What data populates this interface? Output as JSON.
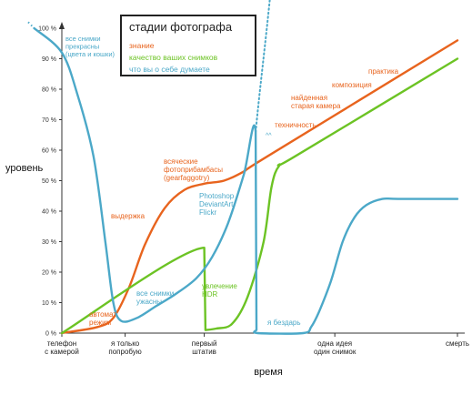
{
  "chart_data": {
    "type": "line",
    "title": "стадии фотографа",
    "ylabel": "уровень",
    "xlabel": "время",
    "ylim": [
      0,
      100
    ],
    "y_ticks": [
      "0 %",
      "10 %",
      "20 %",
      "30 %",
      "40 %",
      "50 %",
      "60 %",
      "70 %",
      "80 %",
      "90 %",
      "100 %"
    ],
    "x_ticks": [
      {
        "x": 0,
        "label": "телефон\nс камерой"
      },
      {
        "x": 0.16,
        "label": "я только\nпопробую"
      },
      {
        "x": 0.36,
        "label": "первый\nштатив"
      },
      {
        "x": 0.69,
        "label": "одна идея\nодин снимок"
      },
      {
        "x": 1.0,
        "label": "смерть"
      }
    ],
    "series": [
      {
        "name": "знание",
        "color": "#E8641E",
        "x": [
          0,
          0.09,
          0.13,
          0.17,
          0.21,
          0.26,
          0.31,
          0.36,
          0.41,
          0.46,
          0.52,
          1.0
        ],
        "y": [
          0,
          2,
          5,
          15,
          29,
          41,
          47,
          49,
          50,
          53,
          58,
          96
        ]
      },
      {
        "name": "качество ваших снимков",
        "color": "#6CC324",
        "x": [
          0,
          0.36,
          0.363,
          0.39,
          0.43,
          0.47,
          0.51,
          0.53,
          0.55,
          0.59,
          1.0
        ],
        "y": [
          0,
          28,
          1,
          1.5,
          3,
          12,
          30,
          48,
          55,
          58,
          90
        ]
      },
      {
        "name": "что вы о себе думаете",
        "color": "#4BA8C8",
        "x": [
          -0.07,
          0,
          0.04,
          0.08,
          0.11,
          0.13,
          0.15,
          0.19,
          0.24,
          0.29,
          0.34,
          0.38,
          0.42,
          0.46,
          0.49,
          0.492,
          0.495,
          0.61,
          0.63,
          0.65,
          0.68,
          0.71,
          0.74,
          0.77,
          0.81,
          0.85,
          1.0
        ],
        "y": [
          100,
          92,
          78,
          58,
          30,
          10,
          4,
          5,
          9,
          13,
          18,
          25,
          36,
          52,
          66,
          1,
          0,
          0,
          2,
          7,
          17,
          30,
          38,
          42,
          44,
          44,
          44
        ]
      }
    ],
    "annotations": [
      {
        "text": "все снимки\nпрекрасны\n(цвета и кошки)",
        "color": "#4BA8C8"
      },
      {
        "text": "выдержка",
        "color": "#E8641E"
      },
      {
        "text": "всяческие\nфотоприбамбасы\n(gearfaggotry)",
        "color": "#E8641E"
      },
      {
        "text": "Photoshop\nDeviantArt\nFlickr",
        "color": "#4BA8C8"
      },
      {
        "text": "техничность",
        "color": "#E8641E"
      },
      {
        "text": "найденная\nстарая камера",
        "color": "#E8641E"
      },
      {
        "text": "композиция",
        "color": "#E8641E"
      },
      {
        "text": "практика",
        "color": "#E8641E"
      },
      {
        "text": "автомат\nрежим",
        "color": "#E8641E"
      },
      {
        "text": "все снимки\nужасны",
        "color": "#4BA8C8"
      },
      {
        "text": "увлечение\nHDR",
        "color": "#6CC324"
      },
      {
        "text": "я бездарь",
        "color": "#4BA8C8"
      },
      {
        "text": "^^",
        "color": "#4BA8C8"
      }
    ],
    "grid": false,
    "legend_position": "top-center"
  }
}
